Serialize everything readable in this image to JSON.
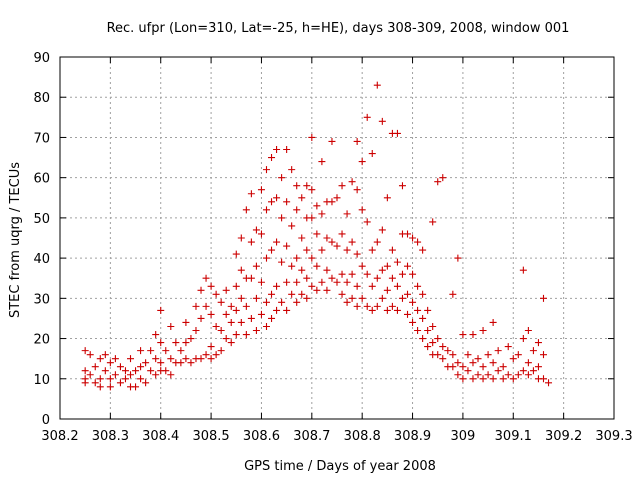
{
  "chart_data": {
    "type": "scatter",
    "title": "Rec. ufpr (Lon=310, Lat=-25, h=HE), days 308-309, 2008, window 001",
    "xlabel": "GPS time / Days of year 2008",
    "ylabel": "STEC from uqrg / TECUs",
    "xlim": [
      308.2,
      309.3
    ],
    "ylim": [
      0,
      90
    ],
    "xticks": [
      308.2,
      308.3,
      308.4,
      308.5,
      308.6,
      308.7,
      308.8,
      308.9,
      309,
      309.1,
      309.2,
      309.3
    ],
    "xtick_labels": [
      "308.2",
      "308.3",
      "308.4",
      "308.5",
      "308.6",
      "308.7",
      "308.8",
      "308.9",
      "309",
      "309.1",
      "309.2",
      "309.3"
    ],
    "yticks": [
      0,
      10,
      20,
      30,
      40,
      50,
      60,
      70,
      80,
      90
    ],
    "ytick_labels": [
      "0",
      "10",
      "20",
      "30",
      "40",
      "50",
      "60",
      "70",
      "80",
      "90"
    ],
    "grid": true,
    "marker": "plus",
    "color": "#cc0000",
    "points": [
      [
        308.25,
        17
      ],
      [
        308.25,
        12
      ],
      [
        308.25,
        10
      ],
      [
        308.25,
        9
      ],
      [
        308.26,
        16
      ],
      [
        308.26,
        11
      ],
      [
        308.27,
        13
      ],
      [
        308.27,
        9
      ],
      [
        308.28,
        15
      ],
      [
        308.28,
        10
      ],
      [
        308.28,
        8
      ],
      [
        308.29,
        16
      ],
      [
        308.29,
        12
      ],
      [
        308.3,
        14
      ],
      [
        308.3,
        10
      ],
      [
        308.3,
        8
      ],
      [
        308.31,
        15
      ],
      [
        308.31,
        11
      ],
      [
        308.32,
        13
      ],
      [
        308.32,
        9
      ],
      [
        308.33,
        12
      ],
      [
        308.33,
        10
      ],
      [
        308.34,
        15
      ],
      [
        308.34,
        11
      ],
      [
        308.34,
        8
      ],
      [
        308.35,
        12
      ],
      [
        308.35,
        8
      ],
      [
        308.36,
        17
      ],
      [
        308.36,
        13
      ],
      [
        308.36,
        10
      ],
      [
        308.37,
        14
      ],
      [
        308.37,
        9
      ],
      [
        308.38,
        17
      ],
      [
        308.38,
        12
      ],
      [
        308.39,
        21
      ],
      [
        308.39,
        15
      ],
      [
        308.39,
        11
      ],
      [
        308.4,
        27
      ],
      [
        308.4,
        19
      ],
      [
        308.4,
        14
      ],
      [
        308.4,
        12
      ],
      [
        308.41,
        17
      ],
      [
        308.41,
        12
      ],
      [
        308.42,
        23
      ],
      [
        308.42,
        15
      ],
      [
        308.42,
        11
      ],
      [
        308.43,
        19
      ],
      [
        308.43,
        14
      ],
      [
        308.44,
        17
      ],
      [
        308.44,
        14
      ],
      [
        308.45,
        24
      ],
      [
        308.45,
        19
      ],
      [
        308.45,
        15
      ],
      [
        308.46,
        20
      ],
      [
        308.46,
        14
      ],
      [
        308.47,
        28
      ],
      [
        308.47,
        22
      ],
      [
        308.47,
        15
      ],
      [
        308.48,
        32
      ],
      [
        308.48,
        25
      ],
      [
        308.48,
        15
      ],
      [
        308.49,
        35
      ],
      [
        308.49,
        28
      ],
      [
        308.49,
        16
      ],
      [
        308.5,
        33
      ],
      [
        308.5,
        26
      ],
      [
        308.5,
        18
      ],
      [
        308.5,
        15
      ],
      [
        308.51,
        31
      ],
      [
        308.51,
        23
      ],
      [
        308.51,
        16
      ],
      [
        308.52,
        29
      ],
      [
        308.52,
        22
      ],
      [
        308.52,
        17
      ],
      [
        308.53,
        32
      ],
      [
        308.53,
        26
      ],
      [
        308.53,
        20
      ],
      [
        308.54,
        28
      ],
      [
        308.54,
        24
      ],
      [
        308.54,
        19
      ],
      [
        308.55,
        41
      ],
      [
        308.55,
        33
      ],
      [
        308.55,
        27
      ],
      [
        308.55,
        21
      ],
      [
        308.56,
        45
      ],
      [
        308.56,
        37
      ],
      [
        308.56,
        30
      ],
      [
        308.56,
        24
      ],
      [
        308.57,
        52
      ],
      [
        308.57,
        35
      ],
      [
        308.57,
        28
      ],
      [
        308.57,
        21
      ],
      [
        308.58,
        56
      ],
      [
        308.58,
        44
      ],
      [
        308.58,
        35
      ],
      [
        308.58,
        25
      ],
      [
        308.59,
        47
      ],
      [
        308.59,
        38
      ],
      [
        308.59,
        30
      ],
      [
        308.59,
        22
      ],
      [
        308.6,
        57
      ],
      [
        308.6,
        46
      ],
      [
        308.6,
        34
      ],
      [
        308.6,
        26
      ],
      [
        308.61,
        62
      ],
      [
        308.61,
        52
      ],
      [
        308.61,
        40
      ],
      [
        308.61,
        29
      ],
      [
        308.61,
        23
      ],
      [
        308.62,
        65
      ],
      [
        308.62,
        54
      ],
      [
        308.62,
        42
      ],
      [
        308.62,
        31
      ],
      [
        308.62,
        25
      ],
      [
        308.63,
        67
      ],
      [
        308.63,
        55
      ],
      [
        308.63,
        44
      ],
      [
        308.63,
        33
      ],
      [
        308.63,
        27
      ],
      [
        308.64,
        60
      ],
      [
        308.64,
        50
      ],
      [
        308.64,
        39
      ],
      [
        308.64,
        29
      ],
      [
        308.65,
        67
      ],
      [
        308.65,
        54
      ],
      [
        308.65,
        43
      ],
      [
        308.65,
        34
      ],
      [
        308.65,
        27
      ],
      [
        308.66,
        62
      ],
      [
        308.66,
        48
      ],
      [
        308.66,
        38
      ],
      [
        308.66,
        31
      ],
      [
        308.67,
        58
      ],
      [
        308.67,
        52
      ],
      [
        308.67,
        40
      ],
      [
        308.67,
        34
      ],
      [
        308.67,
        29
      ],
      [
        308.68,
        55
      ],
      [
        308.68,
        45
      ],
      [
        308.68,
        37
      ],
      [
        308.68,
        31
      ],
      [
        308.69,
        58
      ],
      [
        308.69,
        50
      ],
      [
        308.69,
        42
      ],
      [
        308.69,
        35
      ],
      [
        308.69,
        30
      ],
      [
        308.7,
        70
      ],
      [
        308.7,
        57
      ],
      [
        308.7,
        50
      ],
      [
        308.7,
        40
      ],
      [
        308.7,
        33
      ],
      [
        308.71,
        53
      ],
      [
        308.71,
        46
      ],
      [
        308.71,
        38
      ],
      [
        308.71,
        32
      ],
      [
        308.72,
        64
      ],
      [
        308.72,
        51
      ],
      [
        308.72,
        42
      ],
      [
        308.72,
        34
      ],
      [
        308.73,
        54
      ],
      [
        308.73,
        45
      ],
      [
        308.73,
        37
      ],
      [
        308.73,
        32
      ],
      [
        308.74,
        69
      ],
      [
        308.74,
        54
      ],
      [
        308.74,
        44
      ],
      [
        308.74,
        35
      ],
      [
        308.75,
        55
      ],
      [
        308.75,
        43
      ],
      [
        308.75,
        34
      ],
      [
        308.76,
        58
      ],
      [
        308.76,
        46
      ],
      [
        308.76,
        36
      ],
      [
        308.76,
        31
      ],
      [
        308.77,
        51
      ],
      [
        308.77,
        42
      ],
      [
        308.77,
        34
      ],
      [
        308.77,
        29
      ],
      [
        308.78,
        59
      ],
      [
        308.78,
        44
      ],
      [
        308.78,
        36
      ],
      [
        308.78,
        30
      ],
      [
        308.79,
        69
      ],
      [
        308.79,
        57
      ],
      [
        308.79,
        41
      ],
      [
        308.79,
        33
      ],
      [
        308.79,
        28
      ],
      [
        308.8,
        64
      ],
      [
        308.8,
        52
      ],
      [
        308.8,
        38
      ],
      [
        308.8,
        30
      ],
      [
        308.81,
        75
      ],
      [
        308.81,
        49
      ],
      [
        308.81,
        36
      ],
      [
        308.81,
        28
      ],
      [
        308.82,
        66
      ],
      [
        308.82,
        42
      ],
      [
        308.82,
        33
      ],
      [
        308.82,
        27
      ],
      [
        308.83,
        83
      ],
      [
        308.83,
        44
      ],
      [
        308.83,
        35
      ],
      [
        308.83,
        28
      ],
      [
        308.84,
        74
      ],
      [
        308.84,
        47
      ],
      [
        308.84,
        37
      ],
      [
        308.84,
        30
      ],
      [
        308.85,
        55
      ],
      [
        308.85,
        38
      ],
      [
        308.85,
        32
      ],
      [
        308.85,
        27
      ],
      [
        308.86,
        71
      ],
      [
        308.86,
        42
      ],
      [
        308.86,
        35
      ],
      [
        308.86,
        28
      ],
      [
        308.87,
        71
      ],
      [
        308.87,
        39
      ],
      [
        308.87,
        33
      ],
      [
        308.87,
        27
      ],
      [
        308.88,
        58
      ],
      [
        308.88,
        46
      ],
      [
        308.88,
        36
      ],
      [
        308.88,
        30
      ],
      [
        308.89,
        46
      ],
      [
        308.89,
        38
      ],
      [
        308.89,
        31
      ],
      [
        308.89,
        26
      ],
      [
        308.9,
        45
      ],
      [
        308.9,
        36
      ],
      [
        308.9,
        29
      ],
      [
        308.9,
        24
      ],
      [
        308.91,
        44
      ],
      [
        308.91,
        33
      ],
      [
        308.91,
        27
      ],
      [
        308.91,
        22
      ],
      [
        308.92,
        42
      ],
      [
        308.92,
        31
      ],
      [
        308.92,
        25
      ],
      [
        308.92,
        20
      ],
      [
        308.93,
        27
      ],
      [
        308.93,
        22
      ],
      [
        308.93,
        18
      ],
      [
        308.94,
        49
      ],
      [
        308.94,
        23
      ],
      [
        308.94,
        19
      ],
      [
        308.94,
        16
      ],
      [
        308.95,
        59
      ],
      [
        308.95,
        20
      ],
      [
        308.95,
        16
      ],
      [
        308.96,
        60
      ],
      [
        308.96,
        18
      ],
      [
        308.96,
        15
      ],
      [
        308.97,
        17
      ],
      [
        308.97,
        13
      ],
      [
        308.98,
        31
      ],
      [
        308.98,
        16
      ],
      [
        308.98,
        13
      ],
      [
        308.99,
        40
      ],
      [
        308.99,
        14
      ],
      [
        308.99,
        11
      ],
      [
        309,
        21
      ],
      [
        309,
        13
      ],
      [
        309,
        10
      ],
      [
        309.01,
        16
      ],
      [
        309.01,
        12
      ],
      [
        309.02,
        21
      ],
      [
        309.02,
        14
      ],
      [
        309.02,
        10
      ],
      [
        309.03,
        15
      ],
      [
        309.03,
        11
      ],
      [
        309.04,
        22
      ],
      [
        309.04,
        13
      ],
      [
        309.04,
        10
      ],
      [
        309.05,
        16
      ],
      [
        309.05,
        11
      ],
      [
        309.06,
        24
      ],
      [
        309.06,
        14
      ],
      [
        309.06,
        10
      ],
      [
        309.07,
        17
      ],
      [
        309.07,
        12
      ],
      [
        309.08,
        13
      ],
      [
        309.08,
        10
      ],
      [
        309.09,
        18
      ],
      [
        309.09,
        11
      ],
      [
        309.1,
        15
      ],
      [
        309.1,
        10
      ],
      [
        309.11,
        16
      ],
      [
        309.11,
        11
      ],
      [
        309.12,
        37
      ],
      [
        309.12,
        20
      ],
      [
        309.12,
        12
      ],
      [
        309.13,
        22
      ],
      [
        309.13,
        14
      ],
      [
        309.13,
        11
      ],
      [
        309.14,
        17
      ],
      [
        309.14,
        12
      ],
      [
        309.15,
        19
      ],
      [
        309.15,
        13
      ],
      [
        309.15,
        10
      ],
      [
        309.16,
        30
      ],
      [
        309.16,
        16
      ],
      [
        309.16,
        10
      ],
      [
        309.17,
        9
      ]
    ]
  }
}
